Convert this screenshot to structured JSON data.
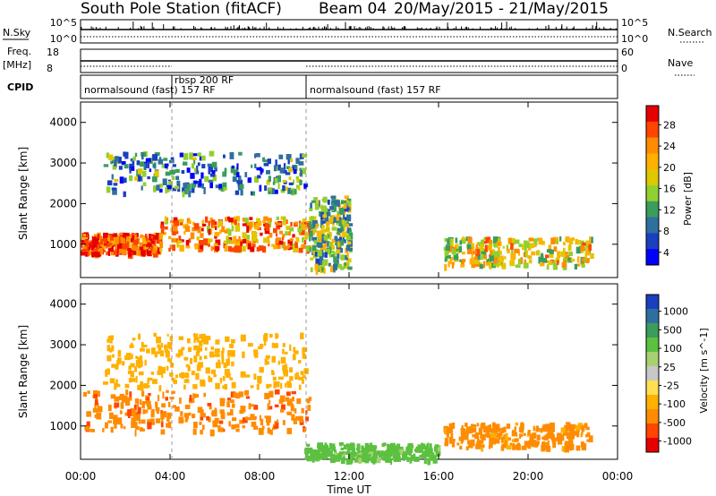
{
  "header": {
    "station": "South Pole Station (fitACF)",
    "beam": "Beam 04",
    "date_range": "20/May/2015 - 21/May/2015"
  },
  "strips": {
    "nsky_label": "N.Sky",
    "nsky_ticks": [
      "10^5",
      "10^0"
    ],
    "nsearch_label": "N.Search",
    "nsearch_ticks": [
      "10^5",
      "10^0"
    ],
    "freq_label": "Freq.",
    "freq_unit": "[MHz]",
    "freq_ticks": [
      "18",
      "8"
    ],
    "nave_label": "Nave",
    "nave_ticks": [
      "60",
      "0"
    ],
    "cpid_label": "CPID",
    "cpid_segments": [
      {
        "label": "normalsound (fast) 157 RF",
        "start_h": 0,
        "end_h": 4.0
      },
      {
        "label": "rbsp 200 RF",
        "start_h": 4.0,
        "end_h": 10.0
      },
      {
        "label": "normalsound (fast) 157 RF",
        "start_h": 10.0,
        "end_h": 24.0
      }
    ]
  },
  "axes": {
    "xlabel": "Time UT",
    "ylabel": "Slant Range [km]",
    "xticks": [
      "00:00",
      "04:00",
      "08:00",
      "12:00",
      "16:00",
      "20:00",
      "00:00"
    ],
    "yticks": [
      "1000",
      "2000",
      "3000",
      "4000"
    ]
  },
  "power_colorbar": {
    "label": "Power [dB]",
    "ticks": [
      "28",
      "24",
      "20",
      "16",
      "12",
      "8",
      "4"
    ],
    "colors": [
      "#e60000",
      "#ff4500",
      "#ff8c00",
      "#ffb000",
      "#e0c800",
      "#90d030",
      "#3a9d5d",
      "#2f6f9f",
      "#1a3fbf",
      "#0000ff"
    ]
  },
  "velocity_colorbar": {
    "label": "Velocity [m s^-1]",
    "ticks": [
      "1000",
      "500",
      "100",
      "25",
      "-25",
      "-100",
      "-500",
      "-1000"
    ],
    "colors": [
      "#1a3fbf",
      "#2f6f9f",
      "#3a9d5d",
      "#5cc040",
      "#a8d070",
      "#c8c8c8",
      "#ffe050",
      "#ffb000",
      "#ff8c00",
      "#ff4500",
      "#e60000"
    ]
  },
  "chart_data": [
    {
      "type": "heatmap",
      "title": "Power",
      "x_range_hours": [
        0,
        24
      ],
      "ylim": [
        180,
        4500
      ],
      "regions": [
        {
          "start_h": 0,
          "end_h": 3.5,
          "range_km": [
            800,
            1300
          ],
          "value_db": 26
        },
        {
          "start_h": 3.5,
          "end_h": 10.2,
          "range_km": [
            900,
            1700
          ],
          "value_db": 22
        },
        {
          "start_h": 1.0,
          "end_h": 10.0,
          "range_km": [
            2300,
            3300
          ],
          "value_db": 10
        },
        {
          "start_h": 10.2,
          "end_h": 12.0,
          "range_km": [
            400,
            2200
          ],
          "value_db": 14
        },
        {
          "start_h": 16.2,
          "end_h": 22.8,
          "range_km": [
            500,
            1200
          ],
          "value_db": 18
        }
      ]
    },
    {
      "type": "heatmap",
      "title": "Velocity",
      "x_range_hours": [
        0,
        24
      ],
      "ylim": [
        180,
        4500
      ],
      "regions": [
        {
          "start_h": 0,
          "end_h": 10.2,
          "range_km": [
            900,
            1900
          ],
          "value_ms": -200
        },
        {
          "start_h": 1.0,
          "end_h": 10.0,
          "range_km": [
            2000,
            3300
          ],
          "value_ms": -60
        },
        {
          "start_h": 10.0,
          "end_h": 16.0,
          "range_km": [
            200,
            600
          ],
          "value_ms": 150
        },
        {
          "start_h": 16.2,
          "end_h": 22.8,
          "range_km": [
            500,
            1100
          ],
          "value_ms": -150
        }
      ]
    }
  ]
}
